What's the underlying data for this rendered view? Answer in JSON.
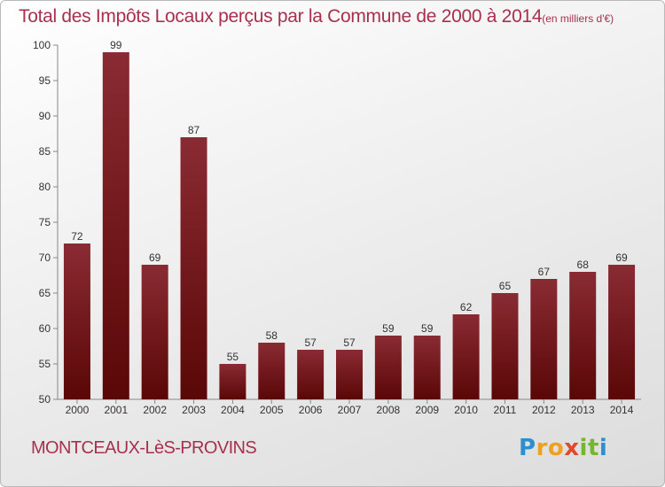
{
  "title": "Total des Impôts Locaux perçus par la Commune de 2000 à 2014",
  "unit": "(en milliers d'€)",
  "commune": "MONTCEAUX-LèS-PROVINS",
  "logo": {
    "text": "Proxiti",
    "letters": [
      "P",
      "r",
      "o",
      "x",
      "i",
      "t",
      "i"
    ],
    "colors": [
      "#2b8fd0",
      "#f0a020",
      "#f0a020",
      "#e04a2a",
      "#74b72e",
      "#74b72e",
      "#2b8fd0"
    ]
  },
  "colors": {
    "bar_top": "#8a2b33",
    "bar_bottom": "#5a0707",
    "accent": "#a8304e"
  },
  "chart_data": {
    "type": "bar",
    "categories": [
      "2000",
      "2001",
      "2002",
      "2003",
      "2004",
      "2005",
      "2006",
      "2007",
      "2008",
      "2009",
      "2010",
      "2011",
      "2012",
      "2013",
      "2014"
    ],
    "values": [
      72,
      99,
      69,
      87,
      55,
      58,
      57,
      57,
      59,
      59,
      62,
      65,
      67,
      68,
      69
    ],
    "ylim": [
      50,
      100
    ],
    "yticks": [
      50,
      55,
      60,
      65,
      70,
      75,
      80,
      85,
      90,
      95,
      100
    ],
    "grid": false,
    "data_labels": true
  }
}
